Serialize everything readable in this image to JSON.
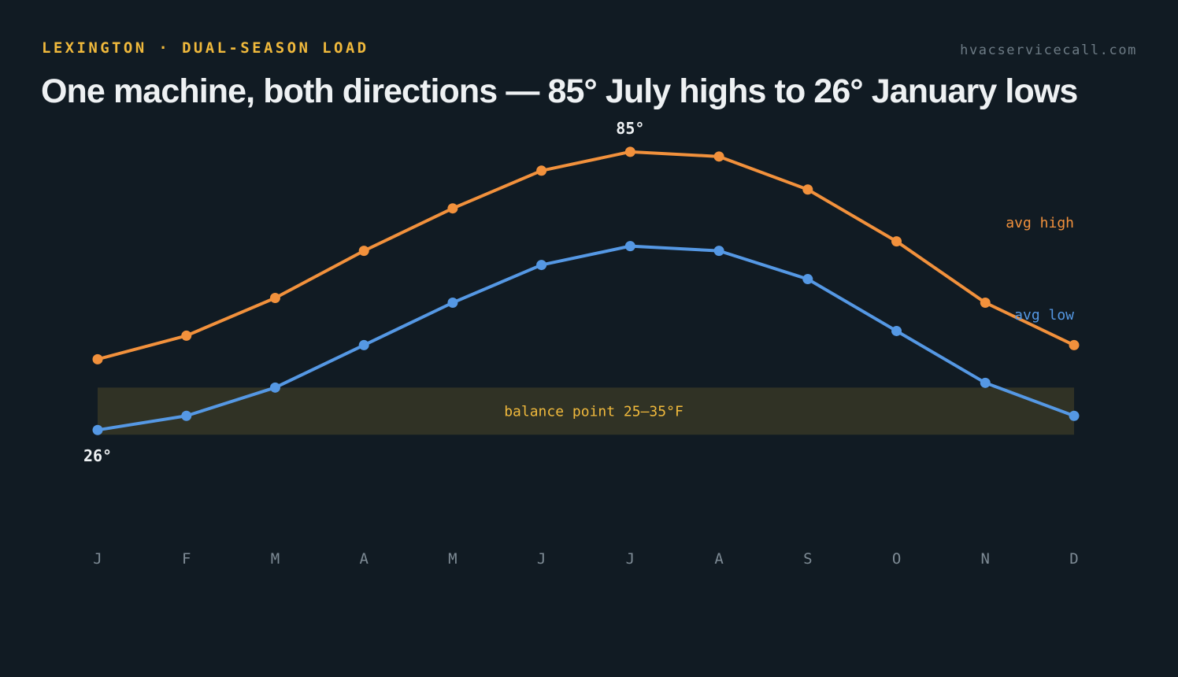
{
  "header": {
    "eyebrow": "LEXINGTON · DUAL-SEASON LOAD",
    "site": "hvacservicecall.com",
    "title": "One machine, both directions — 85° July highs to 26° January lows"
  },
  "colors": {
    "background": "#111b23",
    "high": "#f2913c",
    "low": "#5598e4",
    "band_fill": "#303225",
    "band_text": "#f0b93c",
    "eyebrow": "#f0b93c",
    "axis_text": "#7e8b95",
    "title": "#eef1f3"
  },
  "chart_data": {
    "type": "line",
    "categories": [
      "J",
      "F",
      "M",
      "A",
      "M",
      "J",
      "J",
      "A",
      "S",
      "O",
      "N",
      "D"
    ],
    "series": [
      {
        "name": "avg high",
        "values": [
          41,
          46,
          54,
          64,
          73,
          81,
          85,
          84,
          77,
          66,
          53,
          44
        ]
      },
      {
        "name": "avg low",
        "values": [
          26,
          29,
          35,
          44,
          53,
          61,
          65,
          64,
          58,
          47,
          36,
          29
        ]
      }
    ],
    "band": {
      "label": "balance point 25–35°F",
      "from": 25,
      "to": 35
    },
    "annotations": [
      {
        "text": "85°",
        "series": 0,
        "index": 6
      },
      {
        "text": "26°",
        "series": 1,
        "index": 0
      }
    ],
    "ylim": [
      5,
      100
    ],
    "grid": false,
    "legend": "right, inline labels"
  }
}
